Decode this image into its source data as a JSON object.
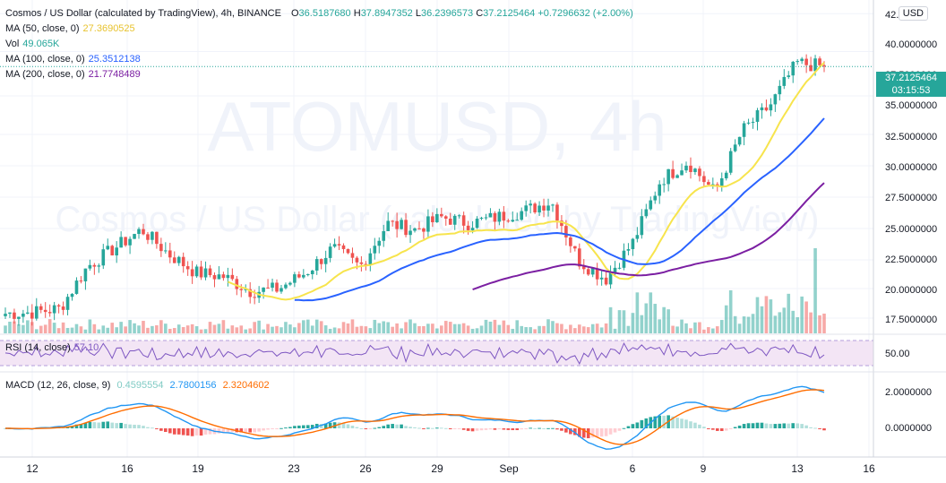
{
  "header": {
    "symbol_desc": "Cosmos / US Dollar (calculated by TradingView), 4h, BINANCE",
    "ohlc": [
      {
        "k": "O",
        "v": "36.5187680"
      },
      {
        "k": "H",
        "v": "37.8947352"
      },
      {
        "k": "L",
        "v": "36.2396573"
      },
      {
        "k": "C",
        "v": "37.2125464"
      }
    ],
    "change": "+0.7296632 (+2.00%)"
  },
  "legends": {
    "ma50": {
      "label": "MA (50, close, 0)",
      "value": "27.3690525",
      "color": "#f7e44d"
    },
    "vol": {
      "label": "Vol",
      "value": "49.065K",
      "color": "#26a69a"
    },
    "ma100": {
      "label": "MA (100, close, 0)",
      "value": "25.3512138",
      "color": "#2962ff"
    },
    "ma200": {
      "label": "MA (200, close, 0)",
      "value": "21.7748489",
      "color": "#7b1fa2"
    },
    "rsi": {
      "label": "RSI (14, close)",
      "value": "57.10",
      "color": "#7e57c2"
    },
    "macd": {
      "label": "MACD (12, 26, close, 9)",
      "hist": "0.4595554",
      "macd": "2.7800156",
      "signal": "2.3204602",
      "hist_color": "#80cbc4",
      "macd_color": "#2196f3",
      "signal_color": "#ff6d00"
    }
  },
  "watermark": {
    "line1": "ATOMUSD, 4h",
    "line2": "Cosmos / US Dollar (calculated by TradingView)"
  },
  "last_price": {
    "price": "37.2125464",
    "countdown": "03:15:53"
  },
  "currency_button": "USD",
  "colors": {
    "up": "#26a69a",
    "down": "#ef5350",
    "rsi_band": "#f3e5f5",
    "rsi_line": "#7e57c2"
  },
  "chart_data": {
    "type": "candlestick",
    "price_axis": {
      "ticks": [
        "42.5",
        "40.0000000",
        "37.5000000",
        "35.0000000",
        "32.5000000",
        "30.0000000",
        "27.5000000",
        "25.0000000",
        "22.5000000",
        "20.0000000",
        "17.5000000"
      ],
      "ylim": [
        15.6,
        42.6
      ]
    },
    "rsi_axis": {
      "ticks": [
        "50.00"
      ],
      "band": [
        30,
        70
      ]
    },
    "macd_axis": {
      "ticks": [
        "2.0000000",
        "0.0000000"
      ],
      "ylim": [
        -1.4,
        3.1
      ]
    },
    "x_axis": {
      "ticks": [
        "12",
        "16",
        "19",
        "23",
        "26",
        "29",
        "Sep",
        "6",
        "9",
        "13",
        "16"
      ]
    },
    "anchors": [
      [
        "12",
        17.2
      ],
      [
        "16",
        17.3
      ],
      [
        "18",
        17.6
      ],
      [
        "19",
        21.0
      ],
      [
        "21",
        22.5
      ],
      [
        "22",
        24.0
      ],
      [
        "23",
        22.0
      ],
      [
        "24",
        20.5
      ],
      [
        "25",
        20.2
      ],
      [
        "26",
        19.0
      ],
      [
        "27",
        19.2
      ],
      [
        "28",
        20.5
      ],
      [
        "29",
        22.5
      ],
      [
        "30",
        21.0
      ],
      [
        "31",
        24.5
      ],
      [
        "Sep 1",
        24.0
      ],
      [
        "Sep 2",
        25.0
      ],
      [
        "Sep 3",
        24.5
      ],
      [
        "Sep 4",
        25.0
      ],
      [
        "Sep 5",
        25.5
      ],
      [
        "Sep 6",
        26.3
      ],
      [
        "Sep 7",
        21.5
      ],
      [
        "Sep 8",
        20.0
      ],
      [
        "Sep 9",
        23.0
      ],
      [
        "Sep 10",
        28.0
      ],
      [
        "Sep 11",
        29.5
      ],
      [
        "Sep 12",
        27.0
      ],
      [
        "Sep 12 12h",
        32.0
      ],
      [
        "Sep 13",
        34.0
      ],
      [
        "Sep 13 12h",
        37.5
      ],
      [
        "Sep 14",
        37.2
      ]
    ],
    "last_candle": {
      "open": 36.518768,
      "high": 37.8947352,
      "low": 36.2396573,
      "close": 37.2125464,
      "volume": "49.065K"
    },
    "indicators": {
      "ma50": 27.3690525,
      "ma100": 25.3512138,
      "ma200": 21.7748489,
      "rsi": 57.1,
      "macd": 2.7800156,
      "signal": 2.3204602,
      "histogram": 0.4595554
    }
  }
}
